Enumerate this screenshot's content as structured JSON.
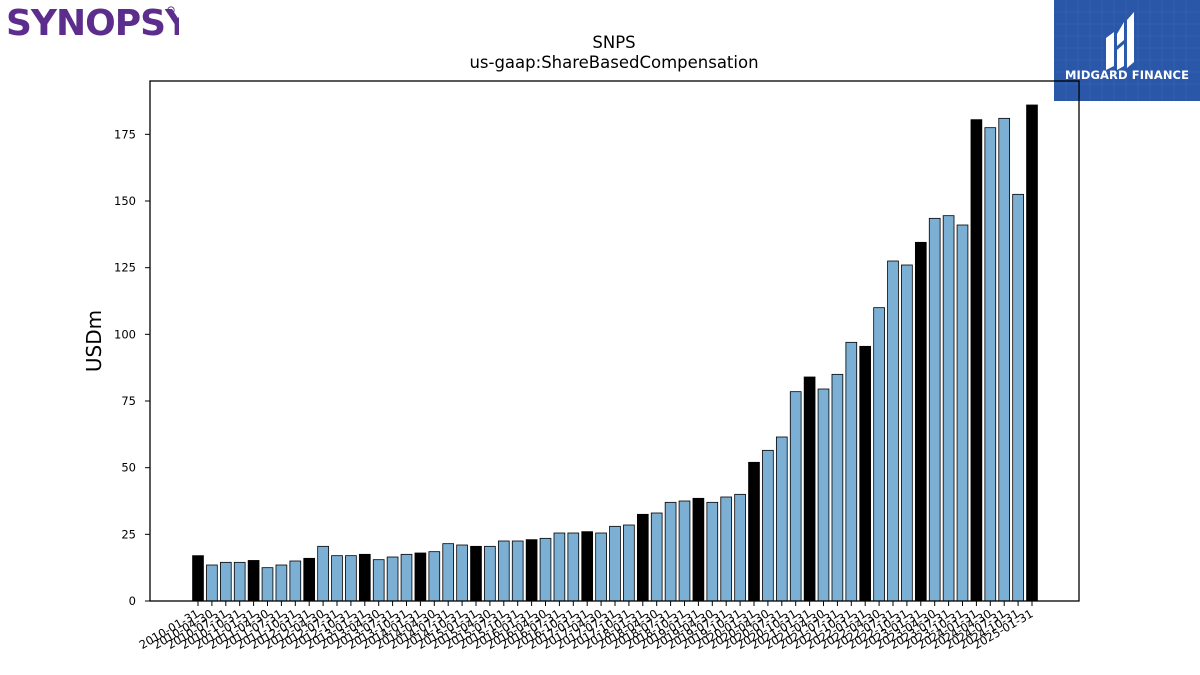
{
  "brand": {
    "left_logo_text": "SYNOPSYS",
    "right_logo_text": "MIDGARD FINANCE"
  },
  "colors": {
    "annual_bar": "#000000",
    "quarter_bar": "#7bafd4",
    "logo_left": "#5c2d8c",
    "logo_right_bg": "#2a57a8"
  },
  "chart_data": {
    "type": "bar",
    "title": "SNPS",
    "subtitle": "us-gaap:ShareBasedCompensation",
    "xlabel": "",
    "ylabel": "USDm",
    "ylim": [
      0,
      195
    ],
    "yticks": [
      0,
      25,
      50,
      75,
      100,
      125,
      150,
      175
    ],
    "grid": false,
    "legend": "none",
    "categories": [
      "2010-01-31",
      "2010-04-30",
      "2010-07-31",
      "2010-10-31",
      "2011-01-31",
      "2011-04-30",
      "2011-07-31",
      "2011-10-31",
      "2012-01-31",
      "2012-04-30",
      "2012-07-31",
      "2012-10-31",
      "2013-01-31",
      "2013-04-30",
      "2013-07-31",
      "2013-10-31",
      "2014-01-31",
      "2014-04-30",
      "2014-07-31",
      "2014-10-31",
      "2015-01-31",
      "2015-04-30",
      "2015-07-31",
      "2015-10-31",
      "2016-01-31",
      "2016-04-30",
      "2016-07-31",
      "2016-10-31",
      "2017-01-31",
      "2017-04-30",
      "2017-07-31",
      "2017-10-31",
      "2018-01-31",
      "2018-04-30",
      "2018-07-31",
      "2018-10-31",
      "2019-01-31",
      "2019-04-30",
      "2019-07-31",
      "2019-10-31",
      "2020-01-31",
      "2020-04-30",
      "2020-07-31",
      "2020-10-31",
      "2021-01-31",
      "2021-04-30",
      "2021-07-31",
      "2021-10-31",
      "2022-01-31",
      "2022-04-30",
      "2022-07-31",
      "2022-10-31",
      "2023-01-31",
      "2023-04-30",
      "2023-07-31",
      "2023-10-31",
      "2024-01-31",
      "2024-04-30",
      "2024-07-31",
      "2024-10-31",
      "2025-01-31"
    ],
    "values": [
      17,
      13.5,
      14.5,
      14.5,
      15.2,
      12.5,
      13.5,
      15,
      16,
      20.5,
      17,
      17,
      17.5,
      15.5,
      16.5,
      17.5,
      18,
      18.5,
      21.5,
      21,
      20.5,
      20.5,
      22.5,
      22.5,
      23,
      23.5,
      25.5,
      25.5,
      26,
      25.5,
      28,
      28.5,
      32.5,
      33,
      37,
      37.5,
      38.5,
      37,
      39,
      40,
      52,
      56.5,
      61.5,
      78.5,
      84,
      79.5,
      85,
      97,
      95.5,
      110,
      127.5,
      126,
      134.5,
      143.5,
      144.5,
      141,
      180.5,
      177.5,
      181,
      152.5,
      186
    ],
    "bar_kind": [
      "annual",
      "quarter",
      "quarter",
      "quarter",
      "annual",
      "quarter",
      "quarter",
      "quarter",
      "annual",
      "quarter",
      "quarter",
      "quarter",
      "annual",
      "quarter",
      "quarter",
      "quarter",
      "annual",
      "quarter",
      "quarter",
      "quarter",
      "annual",
      "quarter",
      "quarter",
      "quarter",
      "annual",
      "quarter",
      "quarter",
      "quarter",
      "annual",
      "quarter",
      "quarter",
      "quarter",
      "annual",
      "quarter",
      "quarter",
      "quarter",
      "annual",
      "quarter",
      "quarter",
      "quarter",
      "annual",
      "quarter",
      "quarter",
      "quarter",
      "annual",
      "quarter",
      "quarter",
      "quarter",
      "annual",
      "quarter",
      "quarter",
      "quarter",
      "annual",
      "quarter",
      "quarter",
      "quarter",
      "annual",
      "quarter",
      "quarter",
      "quarter",
      "annual"
    ]
  }
}
